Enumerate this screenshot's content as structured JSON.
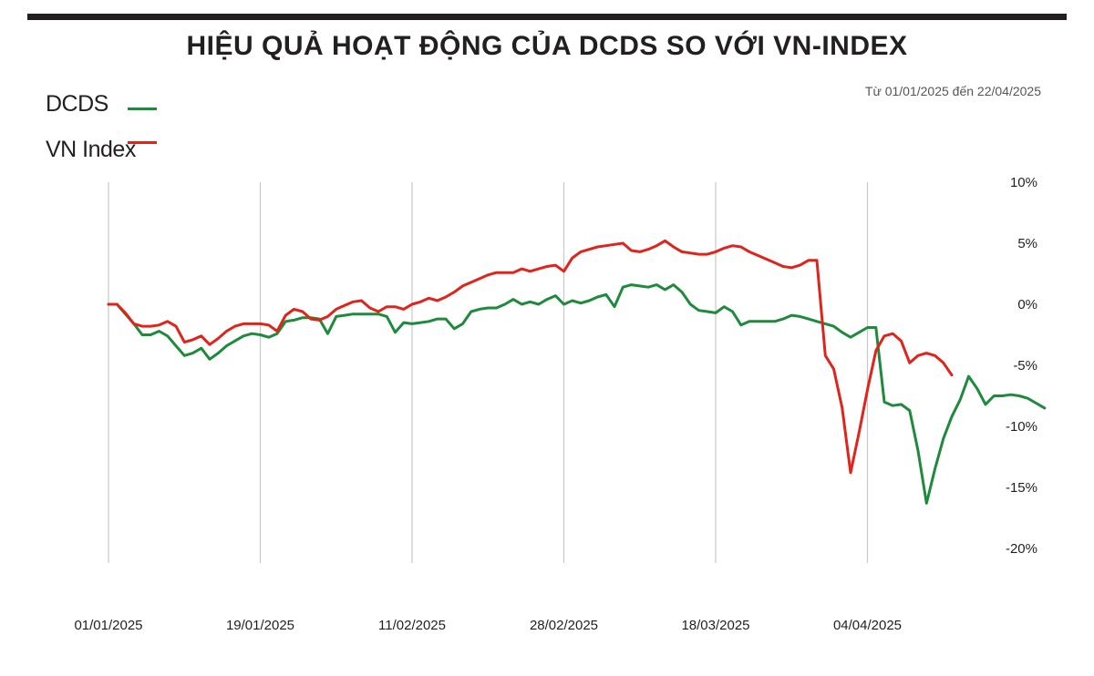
{
  "title": "HIỆU QUẢ HOẠT ĐỘNG CỦA DCDS SO VỚI VN-INDEX",
  "date_range_note": "Từ 01/01/2025 đến 22/04/2025",
  "legend": [
    {
      "name": "DCDS",
      "color": "#1e8a3c"
    },
    {
      "name": "VN Index",
      "color": "#e0241b"
    }
  ],
  "chart_data": {
    "type": "line",
    "title": "HIỆU QUẢ HOẠT ĐỘNG CỦA DCDS SO VỚI VN-INDEX",
    "xlabel": "",
    "ylabel": "",
    "x_tick_labels": [
      "01/01/2025",
      "19/01/2025",
      "11/02/2025",
      "28/02/2025",
      "18/03/2025",
      "04/04/2025"
    ],
    "y_tick_labels": [
      "10%",
      "5%",
      "0%",
      "-5%",
      "-10%",
      "-15%",
      "-20%"
    ],
    "y_ticks": [
      10,
      5,
      0,
      -5,
      -10,
      -15,
      -20
    ],
    "ylim": [
      -20,
      10
    ],
    "x_range_days": [
      0,
      111
    ],
    "grid": "vertical",
    "legend_position": "top-left",
    "x_unit": "days since 01/01/2025",
    "series": [
      {
        "name": "DCDS",
        "color": "#1e8a3c",
        "points": [
          [
            0,
            0.0
          ],
          [
            1,
            0.0
          ],
          [
            2,
            -0.8
          ],
          [
            3,
            -1.6
          ],
          [
            4,
            -2.5
          ],
          [
            5,
            -2.5
          ],
          [
            6,
            -2.2
          ],
          [
            7,
            -2.6
          ],
          [
            8,
            -3.4
          ],
          [
            9,
            -4.2
          ],
          [
            10,
            -4.0
          ],
          [
            11,
            -3.6
          ],
          [
            12,
            -4.5
          ],
          [
            13,
            -4.0
          ],
          [
            14,
            -3.4
          ],
          [
            15,
            -3.0
          ],
          [
            16,
            -2.6
          ],
          [
            17,
            -2.4
          ],
          [
            18,
            -2.5
          ],
          [
            19,
            -2.7
          ],
          [
            20,
            -2.4
          ],
          [
            21,
            -1.4
          ],
          [
            22,
            -1.3
          ],
          [
            23,
            -1.1
          ],
          [
            24,
            -1.1
          ],
          [
            25,
            -1.2
          ],
          [
            26,
            -2.4
          ],
          [
            27,
            -1.0
          ],
          [
            28,
            -0.9
          ],
          [
            29,
            -0.8
          ],
          [
            30,
            -0.8
          ],
          [
            31,
            -0.8
          ],
          [
            32,
            -0.8
          ],
          [
            33,
            -1.0
          ],
          [
            34,
            -2.3
          ],
          [
            35,
            -1.5
          ],
          [
            36,
            -1.6
          ],
          [
            37,
            -1.5
          ],
          [
            38,
            -1.4
          ],
          [
            39,
            -1.2
          ],
          [
            40,
            -1.2
          ],
          [
            41,
            -2.0
          ],
          [
            42,
            -1.6
          ],
          [
            43,
            -0.6
          ],
          [
            44,
            -0.4
          ],
          [
            45,
            -0.3
          ],
          [
            46,
            -0.3
          ],
          [
            47,
            0.0
          ],
          [
            48,
            0.4
          ],
          [
            49,
            0.0
          ],
          [
            50,
            0.2
          ],
          [
            51,
            0.0
          ],
          [
            52,
            0.4
          ],
          [
            53,
            0.7
          ],
          [
            54,
            0.0
          ],
          [
            55,
            0.3
          ],
          [
            56,
            0.1
          ],
          [
            57,
            0.3
          ],
          [
            58,
            0.6
          ],
          [
            59,
            0.8
          ],
          [
            60,
            -0.2
          ],
          [
            61,
            1.4
          ],
          [
            62,
            1.6
          ],
          [
            63,
            1.5
          ],
          [
            64,
            1.4
          ],
          [
            65,
            1.6
          ],
          [
            66,
            1.2
          ],
          [
            67,
            1.6
          ],
          [
            68,
            1.0
          ],
          [
            69,
            0.0
          ],
          [
            70,
            -0.5
          ],
          [
            71,
            -0.6
          ],
          [
            72,
            -0.7
          ],
          [
            73,
            -0.2
          ],
          [
            74,
            -0.6
          ],
          [
            75,
            -1.7
          ],
          [
            76,
            -1.4
          ],
          [
            77,
            -1.4
          ],
          [
            78,
            -1.4
          ],
          [
            79,
            -1.4
          ],
          [
            80,
            -1.2
          ],
          [
            81,
            -0.9
          ],
          [
            82,
            -1.0
          ],
          [
            83,
            -1.2
          ],
          [
            84,
            -1.4
          ],
          [
            85,
            -1.6
          ],
          [
            86,
            -1.8
          ],
          [
            87,
            -2.3
          ],
          [
            88,
            -2.7
          ],
          [
            89,
            -2.3
          ],
          [
            90,
            -1.9
          ],
          [
            91,
            -1.9
          ],
          [
            92,
            -8.0
          ],
          [
            93,
            -8.3
          ],
          [
            94,
            -8.2
          ],
          [
            95,
            -8.7
          ],
          [
            96,
            -12.0
          ],
          [
            97,
            -16.3
          ],
          [
            98,
            -13.5
          ],
          [
            99,
            -11.0
          ],
          [
            100,
            -9.2
          ],
          [
            101,
            -7.8
          ],
          [
            102,
            -5.9
          ],
          [
            103,
            -6.9
          ],
          [
            104,
            -8.2
          ],
          [
            105,
            -7.5
          ],
          [
            106,
            -7.5
          ],
          [
            107,
            -7.4
          ],
          [
            108,
            -7.5
          ],
          [
            109,
            -7.7
          ],
          [
            110,
            -8.1
          ],
          [
            111,
            -8.5
          ]
        ]
      },
      {
        "name": "VN Index",
        "color": "#e0241b",
        "points": [
          [
            0,
            0.0
          ],
          [
            1,
            0.0
          ],
          [
            2,
            -0.7
          ],
          [
            3,
            -1.6
          ],
          [
            4,
            -1.8
          ],
          [
            5,
            -1.8
          ],
          [
            6,
            -1.7
          ],
          [
            7,
            -1.4
          ],
          [
            8,
            -1.8
          ],
          [
            9,
            -3.1
          ],
          [
            10,
            -2.9
          ],
          [
            11,
            -2.6
          ],
          [
            12,
            -3.3
          ],
          [
            13,
            -2.8
          ],
          [
            14,
            -2.2
          ],
          [
            15,
            -1.8
          ],
          [
            16,
            -1.6
          ],
          [
            17,
            -1.6
          ],
          [
            18,
            -1.6
          ],
          [
            19,
            -1.7
          ],
          [
            20,
            -2.2
          ],
          [
            21,
            -0.9
          ],
          [
            22,
            -0.4
          ],
          [
            23,
            -0.6
          ],
          [
            24,
            -1.2
          ],
          [
            25,
            -1.3
          ],
          [
            26,
            -1.0
          ],
          [
            27,
            -0.4
          ],
          [
            28,
            -0.1
          ],
          [
            29,
            0.2
          ],
          [
            30,
            0.3
          ],
          [
            31,
            -0.3
          ],
          [
            32,
            -0.6
          ],
          [
            33,
            -0.2
          ],
          [
            34,
            -0.2
          ],
          [
            35,
            -0.4
          ],
          [
            36,
            0.0
          ],
          [
            37,
            0.2
          ],
          [
            38,
            0.5
          ],
          [
            39,
            0.3
          ],
          [
            40,
            0.6
          ],
          [
            41,
            1.0
          ],
          [
            42,
            1.5
          ],
          [
            43,
            1.8
          ],
          [
            44,
            2.1
          ],
          [
            45,
            2.4
          ],
          [
            46,
            2.6
          ],
          [
            47,
            2.6
          ],
          [
            48,
            2.6
          ],
          [
            49,
            2.9
          ],
          [
            50,
            2.7
          ],
          [
            51,
            2.9
          ],
          [
            52,
            3.1
          ],
          [
            53,
            3.2
          ],
          [
            54,
            2.7
          ],
          [
            55,
            3.8
          ],
          [
            56,
            4.3
          ],
          [
            57,
            4.5
          ],
          [
            58,
            4.7
          ],
          [
            59,
            4.8
          ],
          [
            60,
            4.9
          ],
          [
            61,
            5.0
          ],
          [
            62,
            4.4
          ],
          [
            63,
            4.3
          ],
          [
            64,
            4.5
          ],
          [
            65,
            4.8
          ],
          [
            66,
            5.2
          ],
          [
            67,
            4.7
          ],
          [
            68,
            4.3
          ],
          [
            69,
            4.2
          ],
          [
            70,
            4.1
          ],
          [
            71,
            4.1
          ],
          [
            72,
            4.3
          ],
          [
            73,
            4.6
          ],
          [
            74,
            4.8
          ],
          [
            75,
            4.7
          ],
          [
            76,
            4.3
          ],
          [
            77,
            4.0
          ],
          [
            78,
            3.7
          ],
          [
            79,
            3.4
          ],
          [
            80,
            3.1
          ],
          [
            81,
            3.0
          ],
          [
            82,
            3.2
          ],
          [
            83,
            3.6
          ],
          [
            84,
            3.6
          ],
          [
            85,
            -4.2
          ],
          [
            86,
            -5.3
          ],
          [
            87,
            -8.5
          ],
          [
            88,
            -13.8
          ],
          [
            89,
            -10.5
          ],
          [
            90,
            -7.0
          ],
          [
            91,
            -3.8
          ],
          [
            92,
            -2.6
          ],
          [
            93,
            -2.4
          ],
          [
            94,
            -3.0
          ],
          [
            95,
            -4.8
          ],
          [
            96,
            -4.2
          ],
          [
            97,
            -4.0
          ],
          [
            98,
            -4.2
          ],
          [
            99,
            -4.8
          ],
          [
            100,
            -5.8
          ]
        ]
      }
    ]
  }
}
